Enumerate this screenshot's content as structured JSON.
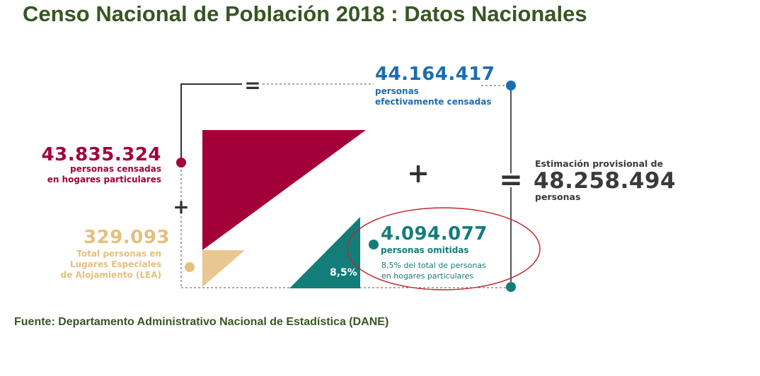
{
  "title": "Censo Nacional de Población 2018 : Datos Nacionales",
  "censadas": {
    "value": "44.164.417",
    "label_line1": "personas",
    "label_line2": "efectivamente censadas"
  },
  "hogares": {
    "value": "43.835.324",
    "label_line1": "personas censadas",
    "label_line2": "en hogares particulares"
  },
  "lea": {
    "value": "329.093",
    "label_line1": "Total personas en",
    "label_line2": "Lugares Especiales",
    "label_line3": "de Alojamiento (LEA)"
  },
  "omitidas": {
    "value": "4.094.077",
    "label": "personas omitidas",
    "note_line1": "8,5% del total de personas",
    "note_line2": "en hogares particulares",
    "percent_label": "8,5%"
  },
  "estimacion": {
    "label": "Estimación provisional de",
    "value": "48.258.494",
    "unit": "personas"
  },
  "operators": {
    "equals_top": "=",
    "plus_left": "+",
    "plus_center": "+",
    "equals_right": "="
  },
  "source": "Fuente: Departamento Administrativo Nacional de Estadística (DANE)",
  "colors": {
    "title": "#375623",
    "censadas": "#1a6db3",
    "hogares": "#a3003a",
    "lea": "#e4c07c",
    "omitidas": "#137d7a",
    "total": "#3a3a3a",
    "highlight_ellipse": "#c0282d"
  }
}
